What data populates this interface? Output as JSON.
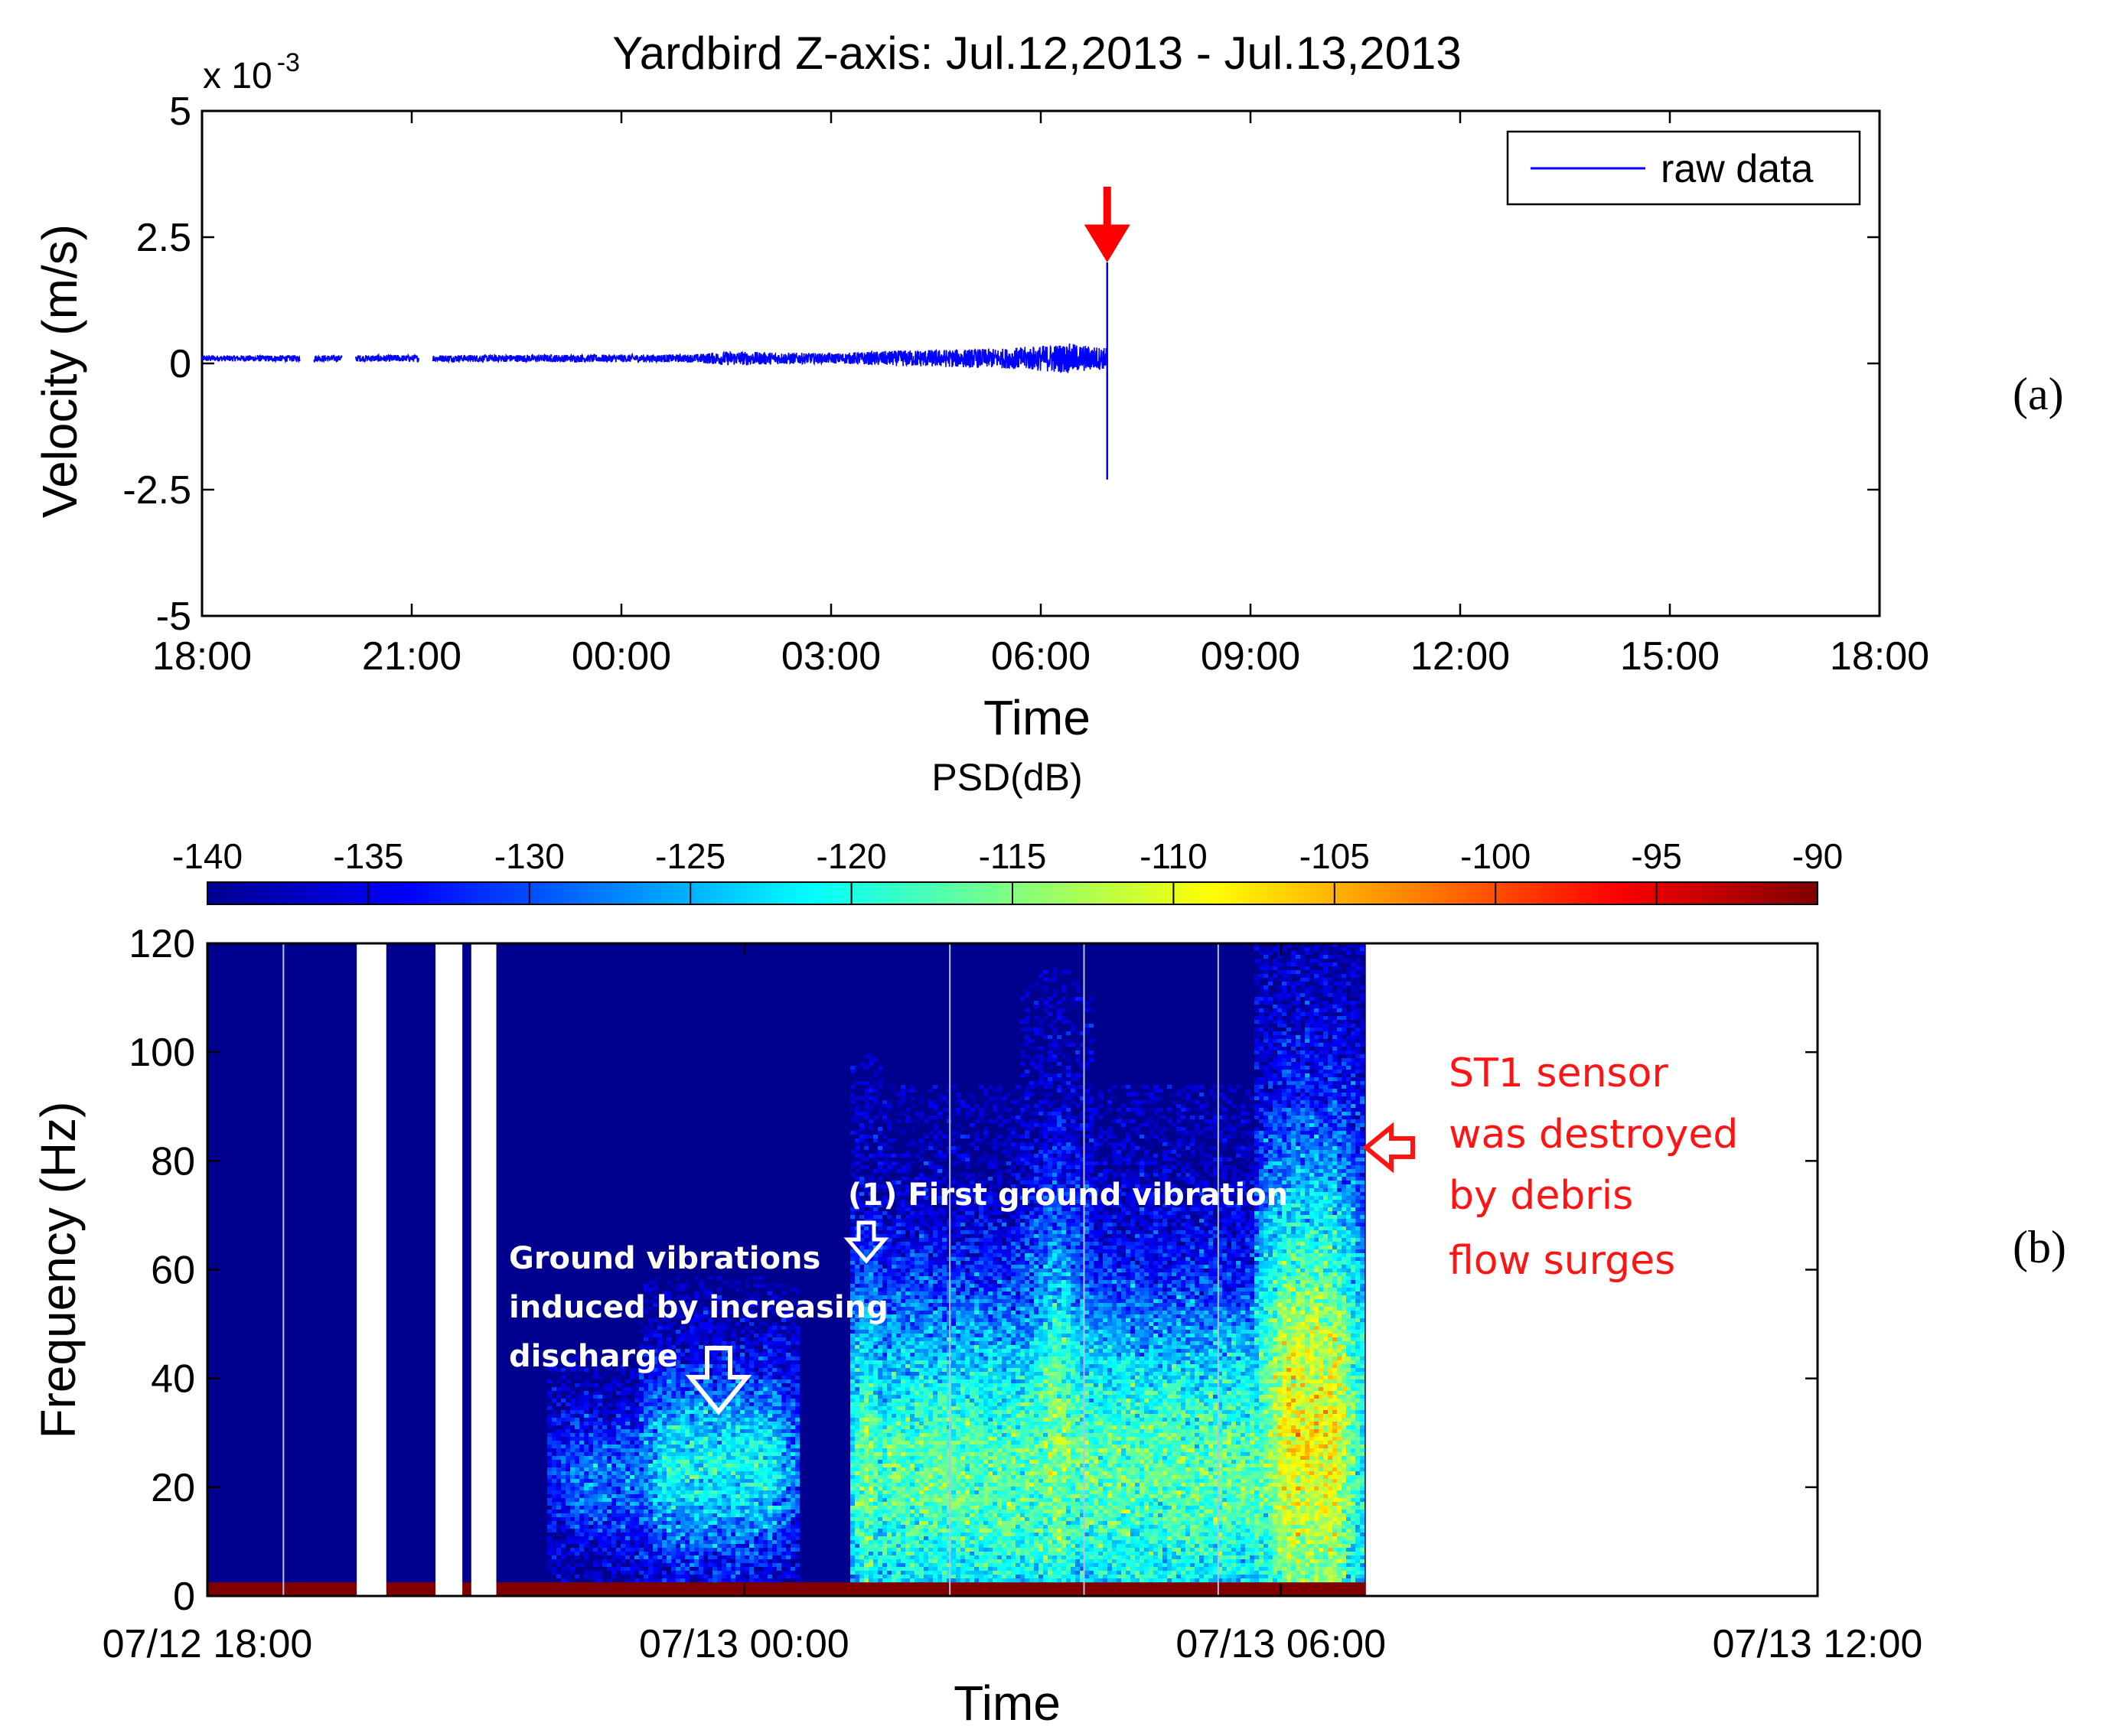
{
  "chart_data": [
    {
      "id": "a",
      "type": "line",
      "title": "Yardbird Z-axis: Jul.12,2013 - Jul.13,2013",
      "xlabel": "Time",
      "ylabel": "Velocity (m/s)",
      "y_multiplier": "x 10",
      "y_multiplier_exp": "-3",
      "ylim": [
        -5,
        5
      ],
      "yticks": [
        5,
        2.5,
        0,
        -2.5,
        -5
      ],
      "ytick_labels": [
        "5",
        "2.5",
        "0",
        "-2.5",
        "-5"
      ],
      "xlim_hours": [
        0,
        24
      ],
      "xticks_hours": [
        0,
        3,
        6,
        9,
        12,
        15,
        18,
        21,
        24
      ],
      "xtick_labels": [
        "18:00",
        "21:00",
        "00:00",
        "03:00",
        "06:00",
        "09:00",
        "12:00",
        "15:00",
        "18:00"
      ],
      "legend": [
        "raw data"
      ],
      "legend_position": "top-right",
      "series": [
        {
          "name": "raw data",
          "color": "#0000ff",
          "baseline": 0.1,
          "end_hour": 12.95,
          "spike": {
            "hour": 12.95,
            "min": -2.3,
            "max": 2.0
          },
          "segments": [
            [
              0,
              1.4
            ],
            [
              1.6,
              2.0
            ],
            [
              2.2,
              3.1
            ],
            [
              3.3,
              5.0
            ],
            [
              5.0,
              12.95
            ]
          ],
          "envelope": [
            {
              "hour": 0,
              "amp": 0.06
            },
            {
              "hour": 7.0,
              "amp": 0.08
            },
            {
              "hour": 7.5,
              "amp": 0.14
            },
            {
              "hour": 9.0,
              "amp": 0.1
            },
            {
              "hour": 10.0,
              "amp": 0.16
            },
            {
              "hour": 11.5,
              "amp": 0.2
            },
            {
              "hour": 12.4,
              "amp": 0.3
            },
            {
              "hour": 12.9,
              "amp": 0.22
            }
          ]
        }
      ],
      "annotation_arrow": {
        "hour": 12.95,
        "y_top": 3.5,
        "y_tip": 2.0,
        "color": "#ff0000"
      },
      "panel_label": "(a)"
    },
    {
      "id": "b",
      "type": "heatmap",
      "xlabel": "Time",
      "ylabel": "Frequency (Hz)",
      "ylim": [
        0,
        120
      ],
      "yticks": [
        0,
        20,
        40,
        60,
        80,
        100,
        120
      ],
      "xlim_hours": [
        0,
        18
      ],
      "xticks_hours": [
        0,
        6,
        12,
        18
      ],
      "xtick_labels": [
        "07/12 18:00",
        "07/13 00:00",
        "07/13 06:00",
        "07/13 12:00"
      ],
      "data_end_hour": 12.95,
      "gaps_hours": [
        [
          1.67,
          2.0
        ],
        [
          2.55,
          2.85
        ],
        [
          2.95,
          3.23
        ]
      ],
      "vertical_lines_hours": [
        0.85,
        8.3,
        9.8,
        11.3
      ],
      "colorbar": {
        "title": "PSD(dB)",
        "min": -140,
        "max": -90,
        "ticks": [
          -140,
          -135,
          -130,
          -125,
          -120,
          -115,
          -110,
          -105,
          -100,
          -95,
          -90
        ],
        "colors": [
          "#00008f",
          "#0000ff",
          "#0080ff",
          "#00ffff",
          "#80ff80",
          "#ffff00",
          "#ff8000",
          "#ff0000",
          "#800000"
        ]
      },
      "activity": [
        {
          "t0": 3.8,
          "t1": 5.9,
          "fc": 22,
          "fw": 9,
          "peak": -128
        },
        {
          "t0": 4.8,
          "t1": 6.6,
          "fc": 24,
          "fw": 13,
          "peak": -121
        },
        {
          "t0": 7.2,
          "t1": 7.55,
          "fc": 22,
          "fw": 28,
          "peak": -108
        },
        {
          "t0": 7.3,
          "t1": 12.95,
          "fc": 22,
          "fw": 26,
          "peak": -117
        },
        {
          "t0": 9.1,
          "t1": 9.9,
          "fc": 26,
          "fw": 32,
          "peak": -114
        },
        {
          "t0": 11.7,
          "t1": 12.95,
          "fc": 30,
          "fw": 38,
          "peak": -109
        }
      ],
      "annotations": {
        "ground_vibrations": [
          "Ground vibrations",
          "induced by increasing",
          "discharge"
        ],
        "first_vibration": "(1) First ground vibration",
        "sensor_destroyed": [
          "ST1 sensor",
          "was destroyed",
          "by debris",
          "flow surges"
        ]
      },
      "panel_label": "(b)"
    }
  ]
}
